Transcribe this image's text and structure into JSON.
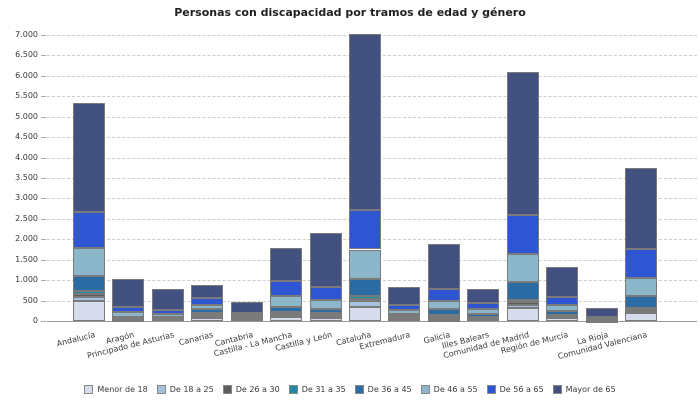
{
  "title": "Personas con discapacidad por tramos de edad y género",
  "chart_data": {
    "type": "bar",
    "stacked": true,
    "title": "Personas con discapacidad por tramos de edad y género",
    "xlabel": "",
    "ylabel": "",
    "ylim": [
      0,
      7000
    ],
    "ytick_interval": 500,
    "grid": "horizontal-dashed",
    "legend_position": "bottom",
    "categories": [
      "Andalucía",
      "Aragón",
      "Principado de Asturias",
      "Canarias",
      "Cantabria",
      "Castilla - La Mancha",
      "Castilla y León",
      "Cataluña",
      "Extremadura",
      "Galicia",
      "Illes Balears",
      "Comunidad de Madrid",
      "Región de Murcia",
      "La Rioja",
      "Comunidad Valenciana"
    ],
    "series": [
      {
        "name": "Menor de 18",
        "color": "#d7dcec",
        "values": [
          490,
          25,
          40,
          80,
          40,
          90,
          70,
          350,
          50,
          35,
          40,
          325,
          75,
          10,
          200
        ]
      },
      {
        "name": "De 18 a 25",
        "color": "#a6c1de",
        "values": [
          100,
          15,
          15,
          35,
          15,
          35,
          30,
          130,
          20,
          20,
          18,
          75,
          25,
          6,
          40
        ]
      },
      {
        "name": "De 26 a 30",
        "color": "#5d5d5d",
        "values": [
          70,
          20,
          20,
          50,
          20,
          50,
          45,
          65,
          27,
          50,
          22,
          65,
          30,
          9,
          40
        ]
      },
      {
        "name": "De 31 a 35",
        "color": "#1e8ca4",
        "values": [
          70,
          10,
          12,
          30,
          12,
          50,
          43,
          65,
          25,
          35,
          18,
          55,
          25,
          8,
          42
        ]
      },
      {
        "name": "De 36 a 45",
        "color": "#2b6ca5",
        "values": [
          360,
          20,
          18,
          90,
          18,
          110,
          105,
          410,
          49,
          145,
          80,
          425,
          80,
          15,
          300
        ]
      },
      {
        "name": "De 46 a 55",
        "color": "#8cb6ca",
        "values": [
          690,
          130,
          60,
          115,
          50,
          285,
          220,
          730,
          98,
          205,
          125,
          700,
          165,
          20,
          440
        ]
      },
      {
        "name": "De 56 a 65",
        "color": "#2e55d2",
        "values": [
          890,
          120,
          100,
          165,
          50,
          365,
          310,
          970,
          122,
          300,
          145,
          940,
          180,
          22,
          700
        ]
      },
      {
        "name": "Mayor de 65",
        "color": "#42517f",
        "values": [
          2660,
          690,
          515,
          310,
          260,
          790,
          1320,
          4310,
          448,
          1085,
          330,
          3510,
          750,
          220,
          1990
        ]
      }
    ],
    "colors": {
      "gridline": "#cccccc",
      "axis_line": "#999999",
      "bar_border": "#7a7a7a",
      "tick_label": "#3a3a3a",
      "title": "#1f1f1f",
      "background": "#ffffff"
    }
  }
}
